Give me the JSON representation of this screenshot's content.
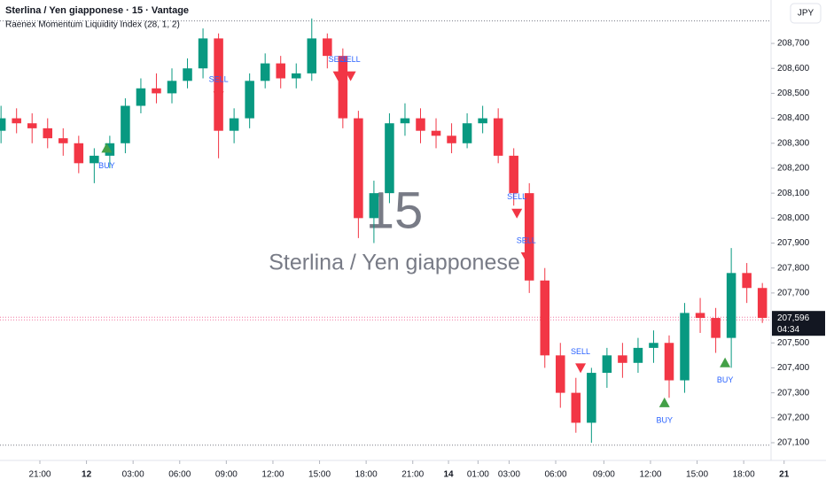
{
  "chart_data": {
    "type": "candlestick",
    "title": "Sterlina / Yen giapponese · 15 · Vantage",
    "subtitle": "Raenex Momentum Liquidity Index (28, 1, 2)",
    "currency_button": "JPY",
    "watermark_interval": "15",
    "watermark_symbol": "Sterlina / Yen giapponese",
    "up_color": "#089981",
    "down_color": "#f23645",
    "x": [
      0.5,
      1.5,
      2.5,
      3.5,
      4.5,
      5.5,
      6.5,
      7.5,
      8.5,
      9.5,
      10.5,
      11.5,
      12.5,
      13.5,
      14.5,
      15.5,
      16.5,
      17.5,
      18.5,
      19.5,
      20.5,
      21.5,
      22.5,
      23.5,
      24.5,
      25.5,
      26.5,
      27.5,
      28.5,
      29.5,
      30.5,
      31.5,
      32.5,
      33.5,
      34.5,
      35.5,
      36.5,
      37.5,
      38.5,
      39.5,
      40.5,
      41.5,
      42.5,
      43.5,
      44.5,
      45.5,
      46.5,
      47.5,
      48.5,
      49.5
    ],
    "open": [
      208.35,
      208.4,
      208.38,
      208.36,
      208.32,
      208.3,
      208.22,
      208.25,
      208.3,
      208.45,
      208.52,
      208.5,
      208.55,
      208.6,
      208.72,
      208.35,
      208.4,
      208.55,
      208.62,
      208.56,
      208.58,
      208.72,
      208.65,
      208.4,
      208.0,
      208.1,
      208.38,
      208.4,
      208.35,
      208.33,
      208.3,
      208.38,
      208.4,
      208.25,
      208.1,
      207.75,
      207.45,
      207.3,
      207.18,
      207.38,
      207.45,
      207.42,
      207.48,
      207.5,
      207.35,
      207.62,
      207.6,
      207.52,
      207.78,
      207.72
    ],
    "high": [
      208.45,
      208.44,
      208.42,
      208.4,
      208.36,
      208.33,
      208.28,
      208.33,
      208.48,
      208.56,
      208.58,
      208.6,
      208.64,
      208.76,
      208.74,
      208.44,
      208.58,
      208.66,
      208.65,
      208.62,
      208.8,
      208.74,
      208.68,
      208.43,
      208.15,
      208.42,
      208.46,
      208.44,
      208.4,
      208.38,
      208.42,
      208.45,
      208.44,
      208.28,
      208.14,
      207.8,
      207.5,
      207.36,
      207.4,
      207.48,
      207.5,
      207.52,
      207.55,
      207.53,
      207.66,
      207.68,
      207.64,
      207.88,
      207.82,
      207.74
    ],
    "low": [
      208.3,
      208.34,
      208.3,
      208.28,
      208.25,
      208.18,
      208.14,
      208.2,
      208.26,
      208.42,
      208.46,
      208.46,
      208.52,
      208.56,
      208.24,
      208.3,
      208.36,
      208.52,
      208.52,
      208.52,
      208.55,
      208.6,
      208.36,
      207.92,
      207.9,
      208.06,
      208.33,
      208.3,
      208.28,
      208.26,
      208.28,
      208.34,
      208.22,
      208.05,
      207.7,
      207.4,
      207.24,
      207.14,
      207.1,
      207.32,
      207.36,
      207.38,
      207.42,
      207.28,
      207.3,
      207.54,
      207.46,
      207.4,
      207.66,
      207.58
    ],
    "close": [
      208.4,
      208.38,
      208.36,
      208.32,
      208.3,
      208.22,
      208.25,
      208.3,
      208.45,
      208.52,
      208.5,
      208.55,
      208.6,
      208.72,
      208.35,
      208.4,
      208.55,
      208.62,
      208.56,
      208.58,
      208.72,
      208.65,
      208.4,
      208.0,
      208.1,
      208.38,
      208.4,
      208.35,
      208.33,
      208.3,
      208.38,
      208.4,
      208.25,
      208.1,
      207.75,
      207.45,
      207.3,
      207.18,
      207.38,
      207.45,
      207.42,
      207.48,
      207.5,
      207.35,
      207.62,
      207.6,
      207.52,
      207.78,
      207.72,
      207.6
    ],
    "signals": [
      {
        "label": "BUY",
        "x": 7.3,
        "price": 208.28
      },
      {
        "label": "SELL",
        "x": 14.5,
        "price": 208.49
      },
      {
        "label": "SELL",
        "x": 22.2,
        "price": 208.57
      },
      {
        "label": "SELL",
        "x": 23.0,
        "price": 208.57
      },
      {
        "label": "SELL",
        "x": 33.7,
        "price": 208.02
      },
      {
        "label": "SELL",
        "x": 34.3,
        "price": 207.845
      },
      {
        "label": "SELL",
        "x": 37.8,
        "price": 207.4
      },
      {
        "label": "BUY",
        "x": 43.2,
        "price": 207.26
      },
      {
        "label": "BUY",
        "x": 47.1,
        "price": 207.42
      }
    ],
    "range_lines": [
      208.79,
      207.09
    ],
    "last_price": {
      "value": 207.596,
      "label": "207,596"
    },
    "countdown": "04:34",
    "xlim": [
      0.434,
      50.06
    ],
    "ylim": [
      207.029,
      208.874
    ],
    "xticks": [
      {
        "value": 3,
        "label": "21:00"
      },
      {
        "value": 6,
        "label": "12"
      },
      {
        "value": 9,
        "label": "03:00"
      },
      {
        "value": 12,
        "label": "06:00"
      },
      {
        "value": 15,
        "label": "09:00"
      },
      {
        "value": 18,
        "label": "12:00"
      },
      {
        "value": 21,
        "label": "15:00"
      },
      {
        "value": 24,
        "label": "18:00"
      },
      {
        "value": 27,
        "label": "21:00"
      },
      {
        "value": 29.3,
        "label": "14"
      },
      {
        "value": 31.2,
        "label": "01:00"
      },
      {
        "value": 33.2,
        "label": "03:00"
      },
      {
        "value": 36.2,
        "label": "06:00"
      },
      {
        "value": 39.3,
        "label": "09:00"
      },
      {
        "value": 42.3,
        "label": "12:00"
      },
      {
        "value": 45.3,
        "label": "15:00"
      },
      {
        "value": 48.3,
        "label": "18:00"
      },
      {
        "value": 50.9,
        "label": "21"
      }
    ],
    "yticks": [
      {
        "value": 207.1,
        "label": "207,100"
      },
      {
        "value": 207.2,
        "label": "207,200"
      },
      {
        "value": 207.3,
        "label": "207,300"
      },
      {
        "value": 207.4,
        "label": "207,400"
      },
      {
        "value": 207.5,
        "label": "207,500"
      },
      {
        "value": 207.7,
        "label": "207,700"
      },
      {
        "value": 207.8,
        "label": "207,800"
      },
      {
        "value": 207.9,
        "label": "207,900"
      },
      {
        "value": 208.0,
        "label": "208,000"
      },
      {
        "value": 208.1,
        "label": "208,100"
      },
      {
        "value": 208.2,
        "label": "208,200"
      },
      {
        "value": 208.3,
        "label": "208,300"
      },
      {
        "value": 208.4,
        "label": "208,400"
      },
      {
        "value": 208.5,
        "label": "208,500"
      },
      {
        "value": 208.6,
        "label": "208,600"
      },
      {
        "value": 208.7,
        "label": "208,700"
      }
    ]
  }
}
